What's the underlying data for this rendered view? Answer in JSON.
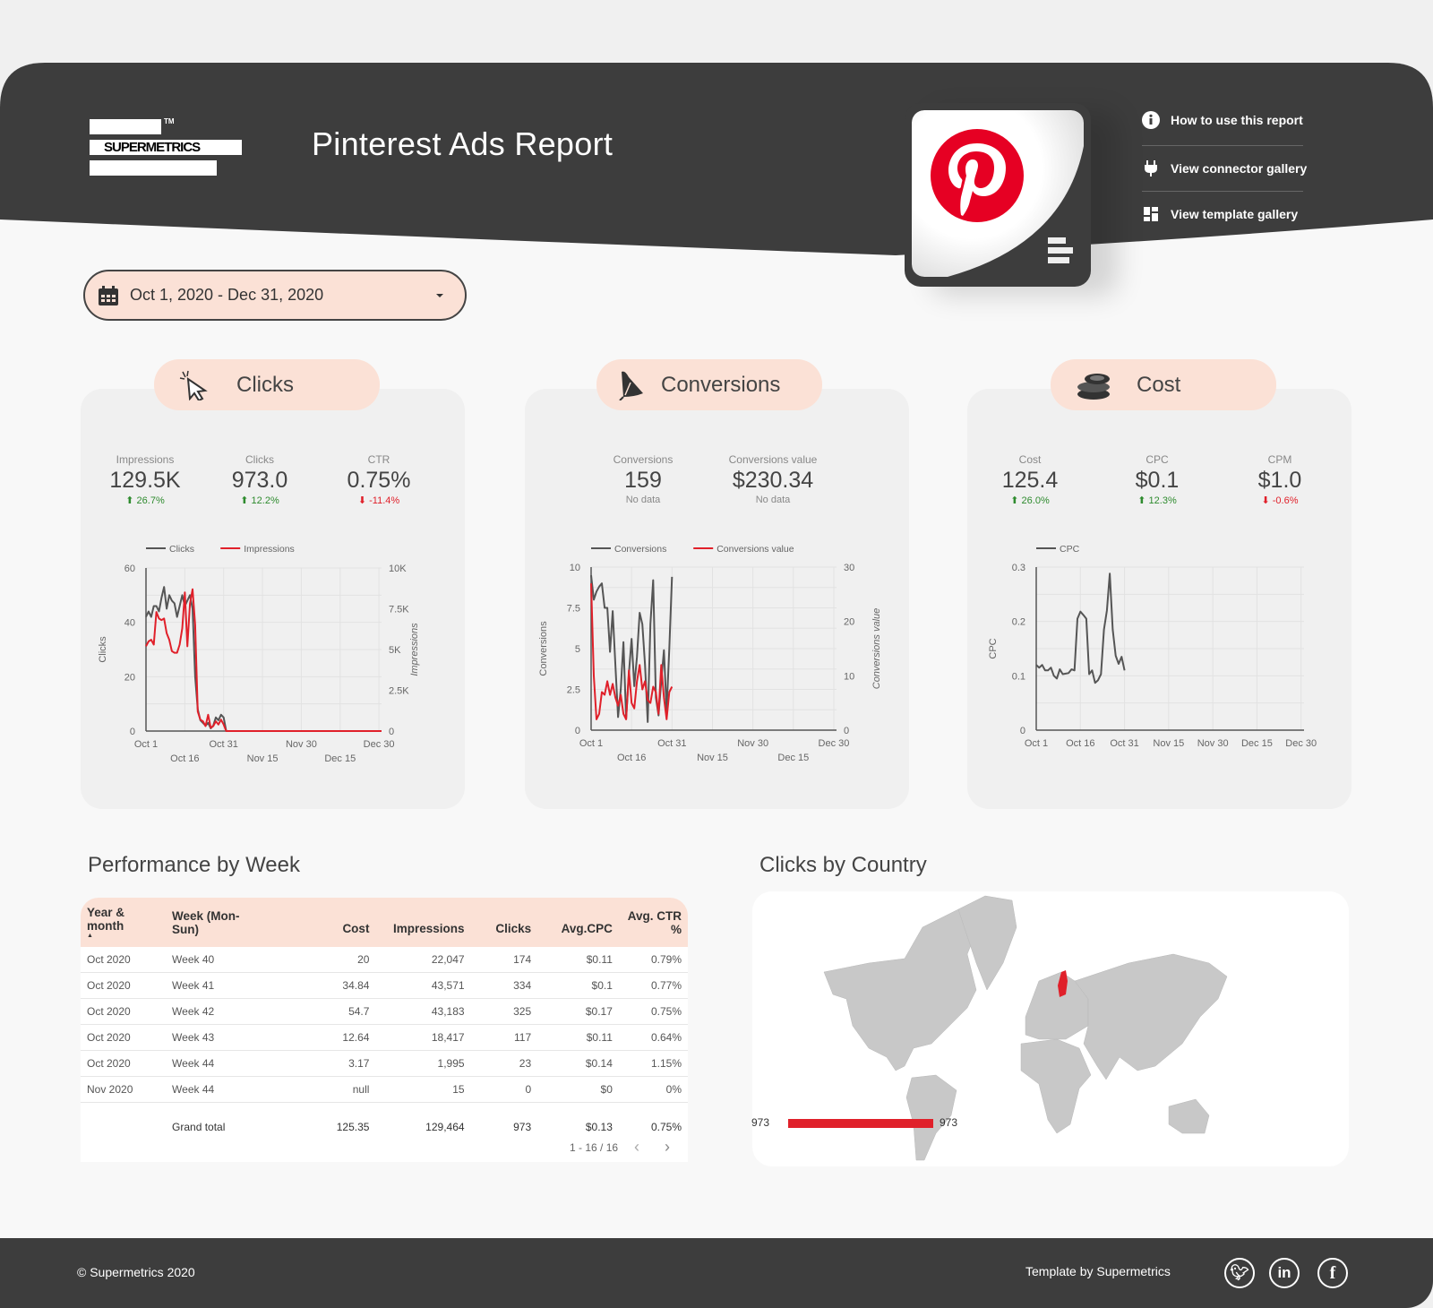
{
  "header": {
    "logo_text": "SUPERMETRICS",
    "logo_tm": "TM",
    "title": "Pinterest Ads Report",
    "links": [
      {
        "label": "How to use this report",
        "icon": "info-icon"
      },
      {
        "label": "View connector gallery",
        "icon": "plug-icon"
      },
      {
        "label": "View template gallery",
        "icon": "grid-icon"
      }
    ]
  },
  "date_range": {
    "value": "Oct 1, 2020 - Dec 31, 2020",
    "icon": "calendar-icon"
  },
  "colors": {
    "accent": "#e0202a",
    "dark": "#3d3d3d",
    "peach": "#fbe1d6",
    "pinterest": "#e60023",
    "up": "#2e8b2e"
  },
  "cards": [
    {
      "title": "Clicks",
      "icon": "cursor-click-icon",
      "kpis": [
        {
          "label": "Impressions",
          "value": "129.5K",
          "delta": "26.7%",
          "dir": "up"
        },
        {
          "label": "Clicks",
          "value": "973.0",
          "delta": "12.2%",
          "dir": "up"
        },
        {
          "label": "CTR",
          "value": "0.75%",
          "delta": "-11.4%",
          "dir": "down"
        }
      ]
    },
    {
      "title": "Conversions",
      "icon": "megaphone-icon",
      "kpis": [
        {
          "label": "Conversions",
          "value": "159",
          "delta": "No data",
          "dir": "none"
        },
        {
          "label": "Conversions value",
          "value": "$230.34",
          "delta": "No data",
          "dir": "none"
        }
      ]
    },
    {
      "title": "Cost",
      "icon": "coins-icon",
      "kpis": [
        {
          "label": "Cost",
          "value": "125.4",
          "delta": "26.0%",
          "dir": "up"
        },
        {
          "label": "CPC",
          "value": "$0.1",
          "delta": "12.3%",
          "dir": "up"
        },
        {
          "label": "CPM",
          "value": "$1.0",
          "delta": "-0.6%",
          "dir": "down"
        }
      ]
    }
  ],
  "chart_data": [
    {
      "type": "line",
      "x_range": [
        "2020-10-01",
        "2020-12-31"
      ],
      "x_ticks": [
        "Oct 1",
        "Oct 16",
        "Oct 31",
        "Nov 15",
        "Nov 30",
        "Dec 15",
        "Dec 30"
      ],
      "ylabel": "Clicks",
      "ylabel_right": "Impressions",
      "ylim": [
        0,
        60
      ],
      "y_ticks": [
        "0",
        "20",
        "40",
        "60"
      ],
      "ylim_right": [
        0,
        10000
      ],
      "y_ticks_right": [
        "0",
        "2.5K",
        "5K",
        "7.5K",
        "10K"
      ],
      "legend": "top-left",
      "grid": true,
      "series": [
        {
          "name": "Clicks",
          "axis": "left",
          "color": "#555555",
          "values": [
            42,
            44,
            42,
            46,
            46,
            44,
            49,
            53,
            45,
            50,
            48,
            47,
            42,
            46,
            50,
            46,
            48,
            50,
            45,
            20,
            8,
            4,
            3,
            2,
            3,
            1,
            2,
            5,
            4,
            6,
            5,
            0,
            0,
            0,
            0,
            0,
            0,
            0,
            0,
            0,
            0,
            0,
            0,
            0,
            0,
            0,
            0,
            0,
            0,
            0,
            0,
            0,
            0,
            0,
            0,
            0,
            0,
            0,
            0,
            0,
            0,
            0,
            0,
            0,
            0,
            0,
            0,
            0,
            0,
            0,
            0,
            0,
            0,
            0,
            0,
            0,
            0,
            0,
            0,
            0,
            0,
            0,
            0,
            0,
            0,
            0,
            0,
            0,
            0,
            0,
            0,
            0
          ]
        },
        {
          "name": "Impressions",
          "axis": "right",
          "color": "#e0202a",
          "values": [
            5200,
            5500,
            5600,
            5300,
            7300,
            6900,
            6800,
            6900,
            6000,
            5600,
            4900,
            4800,
            4800,
            5300,
            6300,
            8500,
            5200,
            7800,
            8700,
            6500,
            1200,
            700,
            600,
            300,
            1000,
            200,
            300,
            600,
            400,
            700,
            400,
            0,
            0,
            0,
            0,
            0,
            0,
            0,
            0,
            0,
            0,
            0,
            0,
            0,
            0,
            0,
            0,
            0,
            0,
            0,
            0,
            0,
            0,
            0,
            0,
            0,
            0,
            0,
            0,
            0,
            0,
            0,
            0,
            0,
            0,
            0,
            0,
            0,
            0,
            0,
            0,
            0,
            0,
            0,
            0,
            0,
            0,
            0,
            0,
            0,
            0,
            0,
            0,
            0,
            0,
            0,
            0,
            0,
            0,
            0,
            0,
            0
          ]
        }
      ]
    },
    {
      "type": "line",
      "x_range": [
        "2020-10-01",
        "2020-12-31"
      ],
      "x_ticks": [
        "Oct 1",
        "Oct 16",
        "Oct 31",
        "Nov 15",
        "Nov 30",
        "Dec 15",
        "Dec 30"
      ],
      "ylabel": "Conversions",
      "ylabel_right": "Conversions value",
      "ylim": [
        0,
        10
      ],
      "y_ticks": [
        "0",
        "2.5",
        "5",
        "7.5",
        "10"
      ],
      "ylim_right": [
        0,
        30
      ],
      "y_ticks_right": [
        "0",
        "10",
        "20",
        "30"
      ],
      "legend": "top-left",
      "grid": true,
      "series": [
        {
          "name": "Conversions",
          "axis": "left",
          "color": "#555555",
          "values": [
            9.5,
            8,
            8.5,
            8.8,
            9,
            7.5,
            7.5,
            4.8,
            7.3,
            4,
            0.8,
            2.5,
            5.4,
            0.7,
            3.5,
            5.6,
            2.7,
            4.5,
            7.2,
            6.5,
            4,
            0.5,
            6.5,
            9.2,
            2,
            0.9,
            3,
            4.9,
            1.2,
            5,
            9.4
          ]
        },
        {
          "name": "Conversions value",
          "axis": "right",
          "color": "#e0202a",
          "values": [
            27,
            10,
            2,
            3,
            7,
            6.5,
            9,
            6.5,
            8.5,
            6,
            4.5,
            6.5,
            3,
            2,
            11,
            5,
            4,
            9,
            12,
            7.5,
            9,
            5.5,
            5,
            8,
            7,
            3,
            12,
            6,
            2,
            7,
            8
          ]
        }
      ]
    },
    {
      "type": "line",
      "x_range": [
        "2020-10-01",
        "2020-12-31"
      ],
      "x_ticks": [
        "Oct 1",
        "Oct 16",
        "Oct 31",
        "Nov 15",
        "Nov 30",
        "Dec 15",
        "Dec 30"
      ],
      "ylabel": "CPC",
      "ylim": [
        0,
        0.3
      ],
      "y_ticks": [
        "0",
        "0.1",
        "0.2",
        "0.3"
      ],
      "legend": "top-left",
      "grid": true,
      "series": [
        {
          "name": "CPC",
          "axis": "left",
          "color": "#555555",
          "values": [
            0.12,
            0.115,
            0.12,
            0.11,
            0.11,
            0.115,
            0.1,
            0.095,
            0.112,
            0.103,
            0.104,
            0.105,
            0.112,
            0.11,
            0.205,
            0.218,
            0.212,
            0.205,
            0.103,
            0.11,
            0.087,
            0.092,
            0.103,
            0.185,
            0.22,
            0.288,
            0.185,
            0.137,
            0.122,
            0.135,
            0.11
          ]
        }
      ]
    }
  ],
  "performance": {
    "title": "Performance by Week",
    "columns": [
      "Year & month",
      "Week (Mon-Sun)",
      "Cost",
      "Impressions",
      "Clicks",
      "Avg.CPC",
      "Avg. CTR %"
    ],
    "sort_indicator": "▲",
    "rows": [
      [
        "Oct 2020",
        "Week 40",
        "20",
        "22,047",
        "174",
        "$0.11",
        "0.79%"
      ],
      [
        "Oct 2020",
        "Week 41",
        "34.84",
        "43,571",
        "334",
        "$0.1",
        "0.77%"
      ],
      [
        "Oct 2020",
        "Week 42",
        "54.7",
        "43,183",
        "325",
        "$0.17",
        "0.75%"
      ],
      [
        "Oct 2020",
        "Week 43",
        "12.64",
        "18,417",
        "117",
        "$0.11",
        "0.64%"
      ],
      [
        "Oct 2020",
        "Week 44",
        "3.17",
        "1,995",
        "23",
        "$0.14",
        "1.15%"
      ],
      [
        "Nov 2020",
        "Week 44",
        "null",
        "15",
        "0",
        "$0",
        "0%"
      ]
    ],
    "total": [
      "",
      "Grand total",
      "125.35",
      "129,464",
      "973",
      "$0.13",
      "0.75%"
    ],
    "pagination": "1 - 16 / 16"
  },
  "country_map": {
    "title": "Clicks by Country",
    "highlighted_country": "Finland",
    "scale_min": "973",
    "scale_max": "973"
  },
  "footer": {
    "copyright": "© Supermetrics 2020",
    "credit": "Template by Supermetrics",
    "social": [
      "twitter-icon",
      "linkedin-icon",
      "facebook-icon"
    ]
  }
}
